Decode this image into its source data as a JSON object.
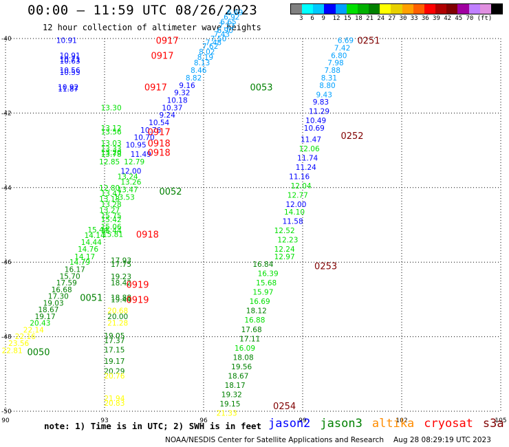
{
  "header": {
    "title": "00:00 – 11:59 UTC 08/26/2023",
    "subtitle": "12 hour collection of altimeter wave heights"
  },
  "colorbar": {
    "colors": [
      "#808080",
      "#00ffff",
      "#00c8ff",
      "#0000ff",
      "#00a0ff",
      "#00e000",
      "#00b000",
      "#008000",
      "#ffff00",
      "#e8d000",
      "#ffa000",
      "#ff6000",
      "#ff0000",
      "#b00000",
      "#800000",
      "#a000a0",
      "#c080ff",
      "#e090e0",
      "#000000"
    ],
    "labels": [
      "3",
      "6",
      "9",
      "12",
      "15",
      "18",
      "21",
      "24",
      "27",
      "30",
      "33",
      "36",
      "39",
      "42",
      "45",
      "70",
      "(ft)"
    ]
  },
  "chart_data": {
    "type": "scatter",
    "title": "00:00 – 11:59 UTC 08/26/2023",
    "subtitle": "12 hour collection of altimeter wave heights",
    "xlim": [
      90,
      105
    ],
    "ylim": [
      -50,
      -40
    ],
    "xticks": [
      "90",
      "93",
      "96",
      "99",
      "102",
      "105"
    ],
    "yticks": [
      "-40",
      "-42",
      "-44",
      "-46",
      "-48",
      "-50"
    ],
    "units": "ft",
    "points": [
      {
        "x": 90.2,
        "y": -48.37,
        "v": "22.81",
        "c": "#ffff00"
      },
      {
        "x": 90.4,
        "y": -48.17,
        "v": "23.56",
        "c": "#ffff00"
      },
      {
        "x": 90.6,
        "y": -47.99,
        "v": "22.16",
        "c": "#ffff00"
      },
      {
        "x": 90.85,
        "y": -47.81,
        "v": "22.14",
        "c": "#ffff00"
      },
      {
        "x": 91.05,
        "y": -47.63,
        "v": "20.43",
        "c": "#00e000"
      },
      {
        "x": 91.2,
        "y": -47.45,
        "v": "19.17",
        "c": "#008000"
      },
      {
        "x": 91.3,
        "y": -47.27,
        "v": "18.67",
        "c": "#008000"
      },
      {
        "x": 91.45,
        "y": -47.09,
        "v": "19.03",
        "c": "#008000"
      },
      {
        "x": 91.6,
        "y": -46.91,
        "v": "17.30",
        "c": "#008000"
      },
      {
        "x": 91.7,
        "y": -46.73,
        "v": "16.68",
        "c": "#008000"
      },
      {
        "x": 91.85,
        "y": -46.55,
        "v": "17.59",
        "c": "#008000"
      },
      {
        "x": 91.95,
        "y": -46.37,
        "v": "15.70",
        "c": "#008000"
      },
      {
        "x": 92.1,
        "y": -46.19,
        "v": "16.17",
        "c": "#008000"
      },
      {
        "x": 92.25,
        "y": -46.0,
        "v": "14.79",
        "c": "#00e000"
      },
      {
        "x": 92.4,
        "y": -45.85,
        "v": "14.17",
        "c": "#00e000"
      },
      {
        "x": 92.5,
        "y": -45.65,
        "v": "14.76",
        "c": "#00e000"
      },
      {
        "x": 92.6,
        "y": -45.46,
        "v": "14.44",
        "c": "#00e000"
      },
      {
        "x": 92.7,
        "y": -45.28,
        "v": "14.14",
        "c": "#00e000"
      },
      {
        "x": 92.8,
        "y": -45.13,
        "v": "15.44",
        "c": "#00e000"
      },
      {
        "x": 93.5,
        "y": -45.95,
        "v": "17.93",
        "c": "#008000"
      },
      {
        "x": 93.5,
        "y": -46.05,
        "v": "17.75",
        "c": "#008000"
      },
      {
        "x": 93.5,
        "y": -46.38,
        "v": "19.23",
        "c": "#008000"
      },
      {
        "x": 93.5,
        "y": -46.55,
        "v": "18.42",
        "c": "#008000"
      },
      {
        "x": 93.5,
        "y": -46.95,
        "v": "18.88",
        "c": "#008000"
      },
      {
        "x": 93.5,
        "y": -47.0,
        "v": "19.44",
        "c": "#008000"
      },
      {
        "x": 93.4,
        "y": -47.3,
        "v": "20.68",
        "c": "#ffff00"
      },
      {
        "x": 93.4,
        "y": -47.45,
        "v": "20.00",
        "c": "#008000"
      },
      {
        "x": 93.4,
        "y": -47.63,
        "v": "21.28",
        "c": "#ffff00"
      },
      {
        "x": 93.3,
        "y": -47.97,
        "v": "19.05",
        "c": "#008000"
      },
      {
        "x": 93.3,
        "y": -48.1,
        "v": "17.37",
        "c": "#008000"
      },
      {
        "x": 93.3,
        "y": -48.35,
        "v": "17.15",
        "c": "#008000"
      },
      {
        "x": 93.3,
        "y": -48.65,
        "v": "19.17",
        "c": "#008000"
      },
      {
        "x": 93.3,
        "y": -48.92,
        "v": "20.29",
        "c": "#008000"
      },
      {
        "x": 93.3,
        "y": -49.05,
        "v": "20.76",
        "c": "#ffff00"
      },
      {
        "x": 93.3,
        "y": -49.65,
        "v": "21.94",
        "c": "#ffff00"
      },
      {
        "x": 93.3,
        "y": -49.78,
        "v": "20.83",
        "c": "#ffff00"
      },
      {
        "x": 93.15,
        "y": -44.0,
        "v": "12.80",
        "c": "#00e000"
      },
      {
        "x": 93.2,
        "y": -44.15,
        "v": "13.47",
        "c": "#00e000"
      },
      {
        "x": 93.15,
        "y": -44.3,
        "v": "13.13",
        "c": "#00e000"
      },
      {
        "x": 93.2,
        "y": -44.45,
        "v": "13.28",
        "c": "#00e000"
      },
      {
        "x": 93.15,
        "y": -44.6,
        "v": "13.27",
        "c": "#00e000"
      },
      {
        "x": 93.2,
        "y": -44.75,
        "v": "15.75",
        "c": "#00e000"
      },
      {
        "x": 93.2,
        "y": -44.85,
        "v": "15.42",
        "c": "#00e000"
      },
      {
        "x": 93.2,
        "y": -45.05,
        "v": "15.06",
        "c": "#00e000"
      },
      {
        "x": 93.2,
        "y": -45.15,
        "v": "15.44",
        "c": "#00e000"
      },
      {
        "x": 93.25,
        "y": -45.25,
        "v": "15.81",
        "c": "#00e000"
      },
      {
        "x": 93.7,
        "y": -43.7,
        "v": "13.24",
        "c": "#00e000"
      },
      {
        "x": 93.8,
        "y": -43.85,
        "v": "13.26",
        "c": "#00e000"
      },
      {
        "x": 93.7,
        "y": -44.05,
        "v": "13.47",
        "c": "#00e000"
      },
      {
        "x": 93.6,
        "y": -44.25,
        "v": "13.53",
        "c": "#00e000"
      },
      {
        "x": 93.2,
        "y": -41.85,
        "v": "13.30",
        "c": "#00e000"
      },
      {
        "x": 93.2,
        "y": -42.4,
        "v": "13.12",
        "c": "#00e000"
      },
      {
        "x": 93.2,
        "y": -42.5,
        "v": "13.56",
        "c": "#00e000"
      },
      {
        "x": 93.2,
        "y": -42.8,
        "v": "13.03",
        "c": "#00e000"
      },
      {
        "x": 93.2,
        "y": -42.95,
        "v": "13.33",
        "c": "#00e000"
      },
      {
        "x": 93.2,
        "y": -43.05,
        "v": "13.20",
        "c": "#00e000"
      },
      {
        "x": 93.2,
        "y": -43.1,
        "v": "13.78",
        "c": "#00e000"
      },
      {
        "x": 93.15,
        "y": -43.3,
        "v": "12.85",
        "c": "#00e000"
      },
      {
        "x": 93.9,
        "y": -43.3,
        "v": "12.79",
        "c": "#00e000"
      },
      {
        "x": 94.1,
        "y": -43.1,
        "v": "11.49",
        "c": "#0000ff"
      },
      {
        "x": 93.8,
        "y": -43.55,
        "v": "12.00",
        "c": "#0000ff"
      },
      {
        "x": 93.95,
        "y": -42.85,
        "v": "10.95",
        "c": "#0000ff"
      },
      {
        "x": 94.2,
        "y": -42.65,
        "v": "10.70",
        "c": "#0000ff"
      },
      {
        "x": 94.4,
        "y": -42.45,
        "v": "10.76",
        "c": "#0000ff"
      },
      {
        "x": 94.65,
        "y": -42.25,
        "v": "10.54",
        "c": "#0000ff"
      },
      {
        "x": 94.9,
        "y": -42.05,
        "v": "9.24",
        "c": "#0000ff"
      },
      {
        "x": 95.05,
        "y": -41.85,
        "v": "10.37",
        "c": "#0000ff"
      },
      {
        "x": 95.2,
        "y": -41.65,
        "v": "10.18",
        "c": "#0000ff"
      },
      {
        "x": 95.35,
        "y": -41.45,
        "v": "9.32",
        "c": "#0000ff"
      },
      {
        "x": 95.5,
        "y": -41.25,
        "v": "9.16",
        "c": "#0000ff"
      },
      {
        "x": 95.7,
        "y": -41.05,
        "v": "8.82",
        "c": "#00a0ff"
      },
      {
        "x": 95.85,
        "y": -40.85,
        "v": "8.46",
        "c": "#00a0ff"
      },
      {
        "x": 95.95,
        "y": -40.65,
        "v": "8.13",
        "c": "#00a0ff"
      },
      {
        "x": 96.05,
        "y": -40.5,
        "v": "8.19",
        "c": "#00a0ff"
      },
      {
        "x": 96.1,
        "y": -40.35,
        "v": "8.02",
        "c": "#00a0ff"
      },
      {
        "x": 96.2,
        "y": -40.2,
        "v": "7.62",
        "c": "#00a0ff"
      },
      {
        "x": 96.3,
        "y": -40.1,
        "v": "7.48",
        "c": "#00a0ff"
      },
      {
        "x": 96.45,
        "y": -40.0,
        "v": "7.50",
        "c": "#00a0ff"
      },
      {
        "x": 96.55,
        "y": -39.88,
        "v": "7.43",
        "c": "#00a0ff"
      },
      {
        "x": 96.65,
        "y": -39.78,
        "v": "6.90",
        "c": "#00a0ff"
      },
      {
        "x": 96.7,
        "y": -39.65,
        "v": "7.33",
        "c": "#00a0ff"
      },
      {
        "x": 96.75,
        "y": -39.55,
        "v": "6.65",
        "c": "#00a0ff"
      },
      {
        "x": 96.85,
        "y": -39.42,
        "v": "6.92",
        "c": "#00a0ff"
      },
      {
        "x": 96.95,
        "y": -39.3,
        "v": "6.69",
        "c": "#00a0ff"
      },
      {
        "x": 91.85,
        "y": -40.05,
        "v": "10.91",
        "c": "#0000ff"
      },
      {
        "x": 91.95,
        "y": -40.45,
        "v": "10.91",
        "c": "#0000ff"
      },
      {
        "x": 91.95,
        "y": -40.55,
        "v": "10.71",
        "c": "#0000ff"
      },
      {
        "x": 91.95,
        "y": -40.6,
        "v": "10.63",
        "c": "#0000ff"
      },
      {
        "x": 91.95,
        "y": -40.85,
        "v": "10.56",
        "c": "#0000ff"
      },
      {
        "x": 91.95,
        "y": -40.9,
        "v": "10.55",
        "c": "#0000ff"
      },
      {
        "x": 91.9,
        "y": -41.3,
        "v": "10.92",
        "c": "#0000ff"
      },
      {
        "x": 91.9,
        "y": -41.35,
        "v": "11.87",
        "c": "#0000ff"
      },
      {
        "x": 100.3,
        "y": -40.05,
        "v": "6.69",
        "c": "#00a0ff"
      },
      {
        "x": 100.2,
        "y": -40.25,
        "v": "7.42",
        "c": "#00a0ff"
      },
      {
        "x": 100.1,
        "y": -40.45,
        "v": "6.80",
        "c": "#00a0ff"
      },
      {
        "x": 100.0,
        "y": -40.65,
        "v": "7.98",
        "c": "#00a0ff"
      },
      {
        "x": 99.9,
        "y": -40.85,
        "v": "7.88",
        "c": "#00a0ff"
      },
      {
        "x": 99.8,
        "y": -41.05,
        "v": "8.31",
        "c": "#00a0ff"
      },
      {
        "x": 99.75,
        "y": -41.25,
        "v": "8.80",
        "c": "#00a0ff"
      },
      {
        "x": 99.65,
        "y": -41.5,
        "v": "9.43",
        "c": "#00a0ff"
      },
      {
        "x": 99.55,
        "y": -41.7,
        "v": "9.83",
        "c": "#0000ff"
      },
      {
        "x": 99.5,
        "y": -41.95,
        "v": "11.29",
        "c": "#0000ff"
      },
      {
        "x": 99.4,
        "y": -42.2,
        "v": "10.49",
        "c": "#0000ff"
      },
      {
        "x": 99.35,
        "y": -42.4,
        "v": "10.69",
        "c": "#0000ff"
      },
      {
        "x": 99.25,
        "y": -42.7,
        "v": "11.47",
        "c": "#0000ff"
      },
      {
        "x": 99.2,
        "y": -42.95,
        "v": "12.06",
        "c": "#00e000"
      },
      {
        "x": 99.15,
        "y": -43.2,
        "v": "11.74",
        "c": "#0000ff"
      },
      {
        "x": 99.1,
        "y": -43.45,
        "v": "11.24",
        "c": "#0000ff"
      },
      {
        "x": 98.9,
        "y": -43.7,
        "v": "11.16",
        "c": "#0000ff"
      },
      {
        "x": 98.95,
        "y": -43.95,
        "v": "12.04",
        "c": "#00e000"
      },
      {
        "x": 98.85,
        "y": -44.2,
        "v": "12.77",
        "c": "#00e000"
      },
      {
        "x": 98.8,
        "y": -44.45,
        "v": "12.00",
        "c": "#0000ff"
      },
      {
        "x": 98.75,
        "y": -44.65,
        "v": "14.10",
        "c": "#00e000"
      },
      {
        "x": 98.7,
        "y": -44.9,
        "v": "11.58",
        "c": "#0000ff"
      },
      {
        "x": 98.45,
        "y": -45.15,
        "v": "12.52",
        "c": "#00e000"
      },
      {
        "x": 98.55,
        "y": -45.4,
        "v": "12.23",
        "c": "#00e000"
      },
      {
        "x": 98.45,
        "y": -45.65,
        "v": "12.24",
        "c": "#00e000"
      },
      {
        "x": 98.45,
        "y": -45.85,
        "v": "12.97",
        "c": "#00e000"
      },
      {
        "x": 97.8,
        "y": -46.05,
        "v": "16.84",
        "c": "#008000"
      },
      {
        "x": 97.95,
        "y": -46.3,
        "v": "16.39",
        "c": "#00e000"
      },
      {
        "x": 97.9,
        "y": -46.55,
        "v": "15.68",
        "c": "#00e000"
      },
      {
        "x": 97.8,
        "y": -46.8,
        "v": "15.97",
        "c": "#00e000"
      },
      {
        "x": 97.7,
        "y": -47.05,
        "v": "16.69",
        "c": "#00e000"
      },
      {
        "x": 97.6,
        "y": -47.3,
        "v": "18.12",
        "c": "#008000"
      },
      {
        "x": 97.55,
        "y": -47.55,
        "v": "16.88",
        "c": "#00e000"
      },
      {
        "x": 97.45,
        "y": -47.8,
        "v": "17.68",
        "c": "#008000"
      },
      {
        "x": 97.4,
        "y": -48.05,
        "v": "17.11",
        "c": "#008000"
      },
      {
        "x": 97.25,
        "y": -48.3,
        "v": "16.09",
        "c": "#00e000"
      },
      {
        "x": 97.2,
        "y": -48.55,
        "v": "18.08",
        "c": "#008000"
      },
      {
        "x": 97.15,
        "y": -48.8,
        "v": "19.56",
        "c": "#008000"
      },
      {
        "x": 97.05,
        "y": -49.05,
        "v": "18.67",
        "c": "#008000"
      },
      {
        "x": 96.95,
        "y": -49.3,
        "v": "18.17",
        "c": "#008000"
      },
      {
        "x": 96.85,
        "y": -49.55,
        "v": "19.32",
        "c": "#008000"
      },
      {
        "x": 96.8,
        "y": -49.8,
        "v": "19.15",
        "c": "#008000"
      },
      {
        "x": 96.7,
        "y": -50.05,
        "v": "21.33",
        "c": "#ffff00"
      }
    ],
    "labels": [
      {
        "x": 94.9,
        "y": -40.05,
        "t": "0917",
        "c": "#ff0000"
      },
      {
        "x": 94.75,
        "y": -40.45,
        "t": "0917",
        "c": "#ff0000"
      },
      {
        "x": 94.55,
        "y": -41.3,
        "t": "0917",
        "c": "#ff0000"
      },
      {
        "x": 94.65,
        "y": -42.5,
        "t": "0917",
        "c": "#ff0000"
      },
      {
        "x": 94.65,
        "y": -42.8,
        "t": "0918",
        "c": "#ff0000"
      },
      {
        "x": 94.65,
        "y": -43.05,
        "t": "0918",
        "c": "#ff0000"
      },
      {
        "x": 94.3,
        "y": -45.25,
        "t": "0918",
        "c": "#ff0000"
      },
      {
        "x": 94.0,
        "y": -46.6,
        "t": "0919",
        "c": "#ff0000"
      },
      {
        "x": 94.0,
        "y": -47.0,
        "t": "0919",
        "c": "#ff0000"
      },
      {
        "x": 97.75,
        "y": -41.3,
        "t": "0053",
        "c": "#008000"
      },
      {
        "x": 95.0,
        "y": -44.1,
        "t": "0052",
        "c": "#008000"
      },
      {
        "x": 92.6,
        "y": -46.95,
        "t": "0051",
        "c": "#008000"
      },
      {
        "x": 91.0,
        "y": -48.4,
        "t": "0050",
        "c": "#008000"
      },
      {
        "x": 101.0,
        "y": -40.05,
        "t": "0251",
        "c": "#800000"
      },
      {
        "x": 100.5,
        "y": -42.6,
        "t": "0252",
        "c": "#800000"
      },
      {
        "x": 99.7,
        "y": -46.1,
        "t": "0253",
        "c": "#800000"
      },
      {
        "x": 98.45,
        "y": -49.85,
        "t": "0254",
        "c": "#800000"
      }
    ]
  },
  "note": "note: 1) Time is in UTC; 2) SWH is in feet",
  "legend": [
    {
      "name": "jason2",
      "color": "#0000ff"
    },
    {
      "name": "jason3",
      "color": "#008000"
    },
    {
      "name": "altika",
      "color": "#ff8c00"
    },
    {
      "name": "cryosat",
      "color": "#ff0000"
    },
    {
      "name": "s3a",
      "color": "#800000"
    }
  ],
  "footer": {
    "source": "NOAA/NESDIS Center for Satellite Applications and Research",
    "timestamp": "Aug 28 08:29:19 UTC 2023"
  }
}
